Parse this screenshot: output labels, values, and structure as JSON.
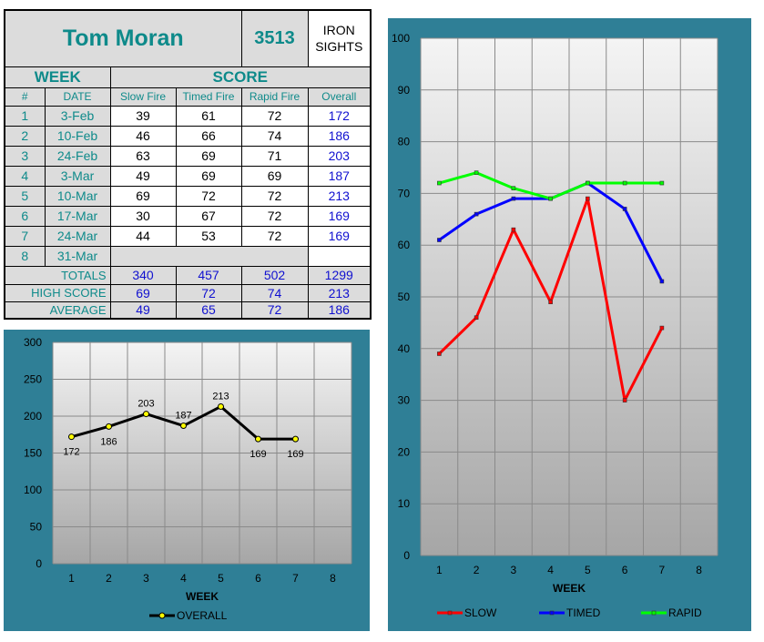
{
  "header": {
    "shooter_name": "Tom Moran",
    "shooter_number": "3513",
    "category": "IRON SIGHTS"
  },
  "table": {
    "week_heading": "WEEK",
    "score_heading": "SCORE",
    "columns": [
      "#",
      "DATE",
      "Slow Fire",
      "Timed Fire",
      "Rapid Fire",
      "Overall"
    ],
    "rows": [
      {
        "num": "1",
        "date": "3-Feb",
        "slow": "39",
        "timed": "61",
        "rapid": "72",
        "overall": "172"
      },
      {
        "num": "2",
        "date": "10-Feb",
        "slow": "46",
        "timed": "66",
        "rapid": "74",
        "overall": "186"
      },
      {
        "num": "3",
        "date": "24-Feb",
        "slow": "63",
        "timed": "69",
        "rapid": "71",
        "overall": "203"
      },
      {
        "num": "4",
        "date": "3-Mar",
        "slow": "49",
        "timed": "69",
        "rapid": "69",
        "overall": "187"
      },
      {
        "num": "5",
        "date": "10-Mar",
        "slow": "69",
        "timed": "72",
        "rapid": "72",
        "overall": "213"
      },
      {
        "num": "6",
        "date": "17-Mar",
        "slow": "30",
        "timed": "67",
        "rapid": "72",
        "overall": "169"
      },
      {
        "num": "7",
        "date": "24-Mar",
        "slow": "44",
        "timed": "53",
        "rapid": "72",
        "overall": "169"
      },
      {
        "num": "8",
        "date": "31-Mar",
        "slow": "",
        "timed": "",
        "rapid": "",
        "overall": ""
      }
    ],
    "totals": {
      "label": "TOTALS",
      "slow": "340",
      "timed": "457",
      "rapid": "502",
      "overall": "1299"
    },
    "high_score": {
      "label": "HIGH SCORE",
      "slow": "69",
      "timed": "72",
      "rapid": "74",
      "overall": "213"
    },
    "average": {
      "label": "AVERAGE",
      "slow": "49",
      "timed": "65",
      "rapid": "72",
      "overall": "186"
    }
  },
  "chart_data": [
    {
      "type": "line",
      "x": [
        1,
        2,
        3,
        4,
        5,
        6,
        7
      ],
      "categories": [
        "1",
        "2",
        "3",
        "4",
        "5",
        "6",
        "7",
        "8"
      ],
      "series": [
        {
          "name": "OVERALL",
          "color": "#000000",
          "marker_color": "#ffff00",
          "values": [
            172,
            186,
            203,
            187,
            213,
            169,
            169
          ]
        }
      ],
      "data_labels": [
        "172",
        "186",
        "203",
        "187",
        "213",
        "169",
        "169"
      ],
      "xlabel": "WEEK",
      "ylabel": "",
      "ylim": [
        0,
        300
      ],
      "yticks": [
        "0",
        "50",
        "100",
        "150",
        "200",
        "250",
        "300"
      ],
      "grid": true,
      "legend": "bottom"
    },
    {
      "type": "line",
      "x": [
        1,
        2,
        3,
        4,
        5,
        6,
        7
      ],
      "categories": [
        "1",
        "2",
        "3",
        "4",
        "5",
        "6",
        "7",
        "8"
      ],
      "series": [
        {
          "name": "SLOW",
          "color": "#ff0000",
          "values": [
            39,
            46,
            63,
            49,
            69,
            30,
            44
          ]
        },
        {
          "name": "TIMED",
          "color": "#0000ff",
          "values": [
            61,
            66,
            69,
            69,
            72,
            67,
            53
          ]
        },
        {
          "name": "RAPID",
          "color": "#00ff00",
          "values": [
            72,
            74,
            71,
            69,
            72,
            72,
            72
          ]
        }
      ],
      "xlabel": "WEEK",
      "ylabel": "",
      "ylim": [
        0,
        100
      ],
      "yticks": [
        "0",
        "10",
        "20",
        "30",
        "40",
        "50",
        "60",
        "70",
        "80",
        "90",
        "100"
      ],
      "grid": true,
      "legend": "bottom"
    }
  ]
}
